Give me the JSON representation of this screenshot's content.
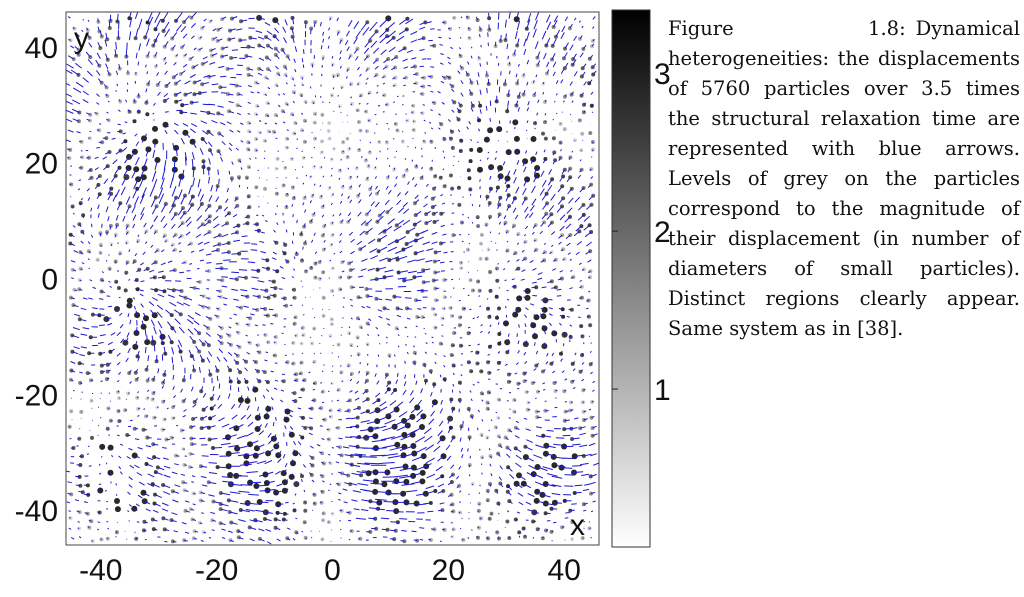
{
  "chart_data": {
    "type": "scatter",
    "title": "",
    "xlabel": "x",
    "ylabel": "y",
    "xlim": [
      -46,
      46
    ],
    "ylim": [
      -46,
      46
    ],
    "x_ticks": [
      "-40",
      "-20",
      "0",
      "20",
      "40"
    ],
    "y_ticks": [
      "40",
      "20",
      "0",
      "-20",
      "-40"
    ],
    "colorbar": {
      "range": [
        0,
        3.4
      ],
      "tick_labels": [
        "3",
        "2",
        "1"
      ],
      "color_low": "#ffffff",
      "color_high": "#000000"
    },
    "arrow_color": "#1a1ad0",
    "grid": false,
    "particle_count": 5760
  },
  "caption": {
    "label": "Figure 1.8:",
    "text": "Dynamical heterogeneities: the displacements of 5760 particles over 3.5 times the structural relaxation time are represented with blue arrows. Levels of grey on the particles correspond to the magnitude of their displacement (in number of diameters of small particles). Distinct regions clearly appear. Same system as in [38]."
  }
}
